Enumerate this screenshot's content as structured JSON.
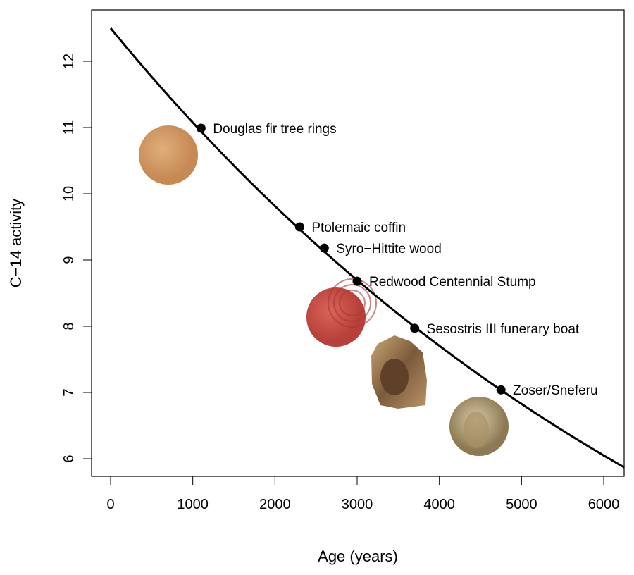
{
  "chart_data": {
    "type": "scatter",
    "title": "",
    "xlabel": "Age (years)",
    "ylabel": "C−14 activity",
    "xlim": [
      -230,
      6250
    ],
    "ylim": [
      5.74,
      12.78
    ],
    "xticks": [
      0,
      1000,
      2000,
      3000,
      4000,
      5000,
      6000
    ],
    "yticks": [
      6,
      7,
      8,
      9,
      10,
      11,
      12
    ],
    "grid": false,
    "curve": {
      "type": "exponential-decay",
      "initial": 12.5,
      "half_life": 5730
    },
    "points": [
      {
        "label": "Douglas fir tree rings",
        "x": 1100,
        "y": 10.99
      },
      {
        "label": "Ptolemaic coffin",
        "x": 2300,
        "y": 9.5
      },
      {
        "label": "Syro−Hittite wood",
        "x": 2600,
        "y": 9.18
      },
      {
        "label": "Redwood Centennial Stump",
        "x": 3000,
        "y": 8.68
      },
      {
        "label": "Sesostris III funerary boat",
        "x": 3700,
        "y": 7.97
      },
      {
        "label": "Zoser/Sneferu",
        "x": 4750,
        "y": 7.04
      }
    ]
  }
}
